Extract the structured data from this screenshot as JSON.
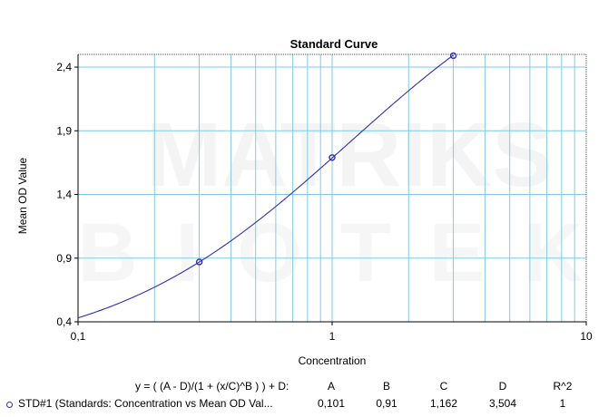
{
  "chart_data": {
    "type": "line",
    "title": "Standard Curve",
    "xlabel": "Concentration",
    "ylabel": "Mean OD Value",
    "xscale": "log",
    "xlim": [
      0.1,
      10
    ],
    "ylim": [
      0.4,
      2.5
    ],
    "x_tick_labels": [
      "0,1",
      "1",
      "10"
    ],
    "y_ticks": [
      0.4,
      0.9,
      1.4,
      1.9,
      2.4
    ],
    "y_tick_labels": [
      "0,4",
      "0,9",
      "1,4",
      "1,9",
      "2,4"
    ],
    "grid": true,
    "watermark": [
      "MATRIKS",
      "BIOTEK"
    ],
    "series": [
      {
        "name": "STD#1 (Standards: Concentration vs Mean OD Val...",
        "color": "#2f2fb4",
        "points": [
          {
            "x": 0.3,
            "y": 0.87
          },
          {
            "x": 1.0,
            "y": 1.69
          },
          {
            "x": 3.0,
            "y": 2.49
          }
        ],
        "fit": {
          "type": "4PL",
          "A": 0.101,
          "B": 0.91,
          "C": 1.162,
          "D": 3.504
        }
      }
    ],
    "legend": {
      "equation": "y = ( (A - D)/(1 + (x/C)^B ) ) + D:",
      "param_headers": [
        "A",
        "B",
        "C",
        "D",
        "R^2"
      ],
      "series_label": "STD#1 (Standards: Concentration vs Mean OD Val...",
      "param_values": [
        "0,101",
        "0,91",
        "1,162",
        "3,504",
        "1"
      ]
    }
  }
}
